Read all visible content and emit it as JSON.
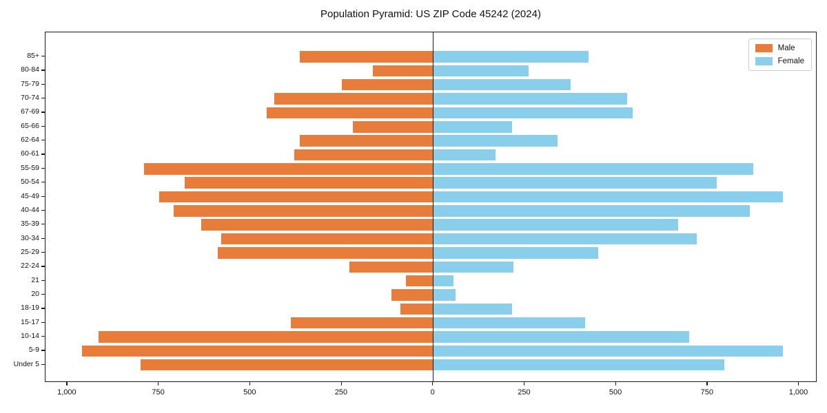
{
  "title": "Population Pyramid: US ZIP Code 45242 (2024)",
  "legend": {
    "male_label": "Male",
    "female_label": "Female"
  },
  "colors": {
    "male": "#E87D3B",
    "female": "#89CEEA",
    "axis": "#1A1A1A",
    "background": "#FFFFFF"
  },
  "chart_data": {
    "type": "bar",
    "variant": "population-pyramid",
    "title": "Population Pyramid: US ZIP Code 45242 (2024)",
    "categories": [
      "85+",
      "80-84",
      "75-79",
      "70-74",
      "67-69",
      "65-66",
      "62-64",
      "60-61",
      "55-59",
      "50-54",
      "45-49",
      "40-44",
      "35-39",
      "30-34",
      "25-29",
      "22-24",
      "21",
      "20",
      "18-19",
      "15-17",
      "10-14",
      "5-9",
      "Under 5"
    ],
    "series": [
      {
        "name": "Male",
        "side": "left",
        "color": "#E87D3B",
        "values": [
          365,
          165,
          250,
          435,
          455,
          220,
          365,
          380,
          790,
          680,
          750,
          710,
          635,
          580,
          590,
          230,
          75,
          115,
          90,
          390,
          915,
          960,
          800
        ]
      },
      {
        "name": "Female",
        "side": "right",
        "color": "#89CEEA",
        "values": [
          425,
          260,
          375,
          530,
          545,
          215,
          340,
          170,
          875,
          775,
          955,
          865,
          670,
          720,
          450,
          220,
          55,
          60,
          215,
          415,
          700,
          955,
          795
        ]
      }
    ],
    "x_axis": {
      "ticks": [
        {
          "value": -1000,
          "label": "1,000"
        },
        {
          "value": -750,
          "label": "750"
        },
        {
          "value": -500,
          "label": "500"
        },
        {
          "value": -250,
          "label": "250"
        },
        {
          "value": 0,
          "label": "0"
        },
        {
          "value": 250,
          "label": "250"
        },
        {
          "value": 500,
          "label": "500"
        },
        {
          "value": 750,
          "label": "750"
        },
        {
          "value": 1000,
          "label": "1,000"
        }
      ],
      "xlim": [
        -1060,
        1050
      ]
    },
    "grid": false,
    "legend_position": "upper-right"
  }
}
